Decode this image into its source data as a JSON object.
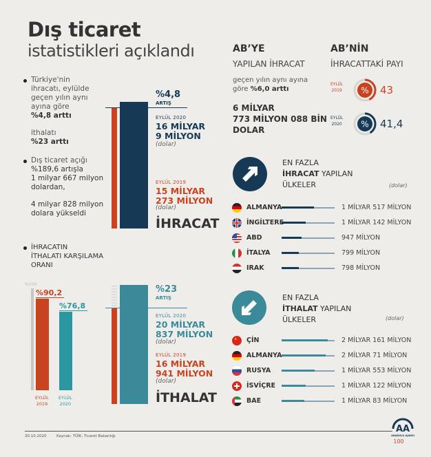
{
  "title": "Dış ticaret",
  "subtitle": "istatistikleri açıklandı",
  "bullets": {
    "b1": [
      "Türkiye'nin",
      "ihracatı, eylülde",
      "geçen yılın aynı",
      "ayına göre",
      "%4,8 arttı"
    ],
    "b1b": [
      "ithalatı",
      "%23 arttı"
    ],
    "b2": [
      "Dış ticaret açığı",
      "%189,6 artışla",
      "1 milyar 667 milyon",
      "dolardan,"
    ],
    "b2b": [
      "4 milyar 828 milyon",
      "dolara yükseldi"
    ],
    "b3": [
      "İHRACATIN",
      "İTHALATI KARŞILAMA",
      "ORANI"
    ]
  },
  "colors": {
    "navy": "#163a56",
    "orange": "#c8431f",
    "teal": "#3a8a9a",
    "ratio_teal": "#2b97a0",
    "background": "#efedea"
  },
  "chart_data": [
    {
      "type": "bar",
      "title": "İHRACAT",
      "categories": [
        "EYLÜL 2019",
        "EYLÜL 2020"
      ],
      "values": [
        15.273,
        16.009
      ],
      "unit": "milyar dolar",
      "change": "%4,8",
      "change_label": "ARTIŞ",
      "labels": {
        "y2020": "EYLÜL 2020",
        "v2020a": "16 MİLYAR",
        "v2020b": "9 MİLYON",
        "y2019": "EYLÜL 2019",
        "v2019a": "15 MİLYAR",
        "v2019b": "273 MİLYON",
        "unit": "(dolar)"
      }
    },
    {
      "type": "bar",
      "title": "İTHALAT",
      "categories": [
        "EYLÜL 2019",
        "EYLÜL 2020"
      ],
      "values": [
        16.941,
        20.837
      ],
      "unit": "milyar dolar",
      "change": "%23",
      "change_label": "ARTIŞ",
      "labels": {
        "y2020": "EYLÜL 2020",
        "v2020a": "20 MİLYAR",
        "v2020b": "837 MİLYON",
        "y2019": "EYLÜL 2019",
        "v2019a": "16 MİLYAR",
        "v2019b": "941 MİLYON",
        "unit": "(dolar)"
      }
    },
    {
      "type": "bar",
      "title": "İHRACATIN İTHALATI KARŞILAMA ORANI",
      "categories": [
        "EYLÜL 2019",
        "EYLÜL 2020"
      ],
      "values": [
        90.2,
        76.8
      ],
      "value_labels": [
        "%90,2",
        "%76,8"
      ],
      "ylim": [
        0,
        100
      ],
      "max_label": "%100",
      "cat_lines": [
        [
          "EYLÜL",
          "2019"
        ],
        [
          "EYLÜL",
          "2020"
        ]
      ]
    },
    {
      "type": "pie",
      "title": "AB'NİN İHRACATTAKİ PAYI",
      "categories": [
        "EYLÜL 2019",
        "EYLÜL 2020"
      ],
      "values": [
        43,
        41.4
      ],
      "value_labels": [
        "43",
        "41,4"
      ],
      "cat_lines": [
        [
          "EYLÜL",
          "2019"
        ],
        [
          "EYLÜL",
          "2020"
        ]
      ],
      "icon": "%"
    }
  ],
  "ab": {
    "h1": "AB’YE",
    "h2": "YAPILAN İHRACAT",
    "desc1": "geçen yılın aynı ayına",
    "desc2a": "göre ",
    "desc2b": "%6,0 arttı",
    "v1": "6 MİLYAR",
    "v2": "773 MİLYON 088 BİN",
    "v3": "DOLAR",
    "share_h1": "AB’NİN",
    "share_h2": "İHRACATTAKİ PAYI"
  },
  "exports": {
    "h1": "EN FAZLA",
    "h2a": "İHRACAT",
    "h2b": " YAPILAN",
    "h3": "ÜLKELER",
    "unit": "(dolar)",
    "icon": "arrow-up-right-icon",
    "rows": [
      {
        "country": "ALMANYA",
        "value": "1 MİLYAR 517 MİLYON",
        "millions": 1517,
        "flag": "de"
      },
      {
        "country": "İNGİLTERE",
        "value": "1 MİLYAR 142 MİLYON",
        "millions": 1142,
        "flag": "gb"
      },
      {
        "country": "ABD",
        "value": "947 MİLYON",
        "millions": 947,
        "flag": "us"
      },
      {
        "country": "İTALYA",
        "value": "799 MİLYON",
        "millions": 799,
        "flag": "it"
      },
      {
        "country": "IRAK",
        "value": "798 MİLYON",
        "millions": 798,
        "flag": "iq"
      }
    ]
  },
  "imports": {
    "h1": "EN FAZLA",
    "h2a": "İTHALAT",
    "h2b": " YAPILAN",
    "h3": "ÜLKELER",
    "unit": "(dolar)",
    "icon": "arrow-down-left-icon",
    "rows": [
      {
        "country": "ÇİN",
        "value": "2 MİLYAR 161 MİLYON",
        "millions": 2161,
        "flag": "cn"
      },
      {
        "country": "ALMANYA",
        "value": "2 MİLYAR 71 MİLYON",
        "millions": 2071,
        "flag": "de"
      },
      {
        "country": "RUSYA",
        "value": "1 MİLYAR 553 MİLYON",
        "millions": 1553,
        "flag": "ru"
      },
      {
        "country": "İSVİÇRE",
        "value": "1 MİLYAR 122 MİLYON",
        "millions": 1122,
        "flag": "ch"
      },
      {
        "country": "BAE",
        "value": "1 MİLYAR 83 MİLYON",
        "millions": 1083,
        "flag": "ae"
      }
    ]
  },
  "footer": {
    "date": "30.10.2020",
    "source": "Kaynak: TÜİK, Ticaret Bakanlığı",
    "logo": "ANADOLU AJANSI 100"
  }
}
